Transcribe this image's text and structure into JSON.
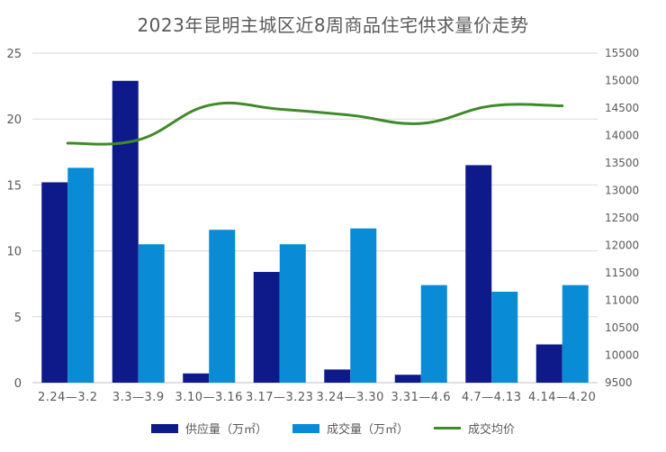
{
  "colors": {
    "supply": "#0e1a8a",
    "deal": "#0a8bd6",
    "price": "#3f8a2a",
    "axis_text": "#595959",
    "grid": "#d9d9d9"
  },
  "chart_data": {
    "type": "bar",
    "title": "2023年昆明主城区近8周商品住宅供求量价走势",
    "categories": [
      "2.24—3.2",
      "3.3—3.9",
      "3.10—3.16",
      "3.17—3.23",
      "3.24—3.30",
      "3.31—4.6",
      "4.7—4.13",
      "4.14—4.20"
    ],
    "series": [
      {
        "name": "供应量（万㎡）",
        "type": "bar",
        "axis": "left",
        "values": [
          15.2,
          22.9,
          0.7,
          8.4,
          1.0,
          0.6,
          16.5,
          2.9
        ]
      },
      {
        "name": "成交量（万㎡）",
        "type": "bar",
        "axis": "left",
        "values": [
          16.3,
          10.5,
          11.6,
          10.5,
          11.7,
          7.4,
          6.9,
          7.4
        ]
      },
      {
        "name": "成交均价",
        "type": "line",
        "axis": "right",
        "values": [
          13860,
          13920,
          14550,
          14480,
          14370,
          14220,
          14540,
          14540
        ]
      }
    ],
    "ylim_left": [
      0,
      25
    ],
    "yticks_left": [
      0,
      5,
      10,
      15,
      20,
      25
    ],
    "ylim_right": [
      9500,
      15500
    ],
    "yticks_right": [
      9500,
      10000,
      10500,
      11000,
      11500,
      12000,
      12500,
      13000,
      13500,
      14000,
      14500,
      15000,
      15500
    ],
    "grid": true,
    "legend_position": "bottom"
  }
}
